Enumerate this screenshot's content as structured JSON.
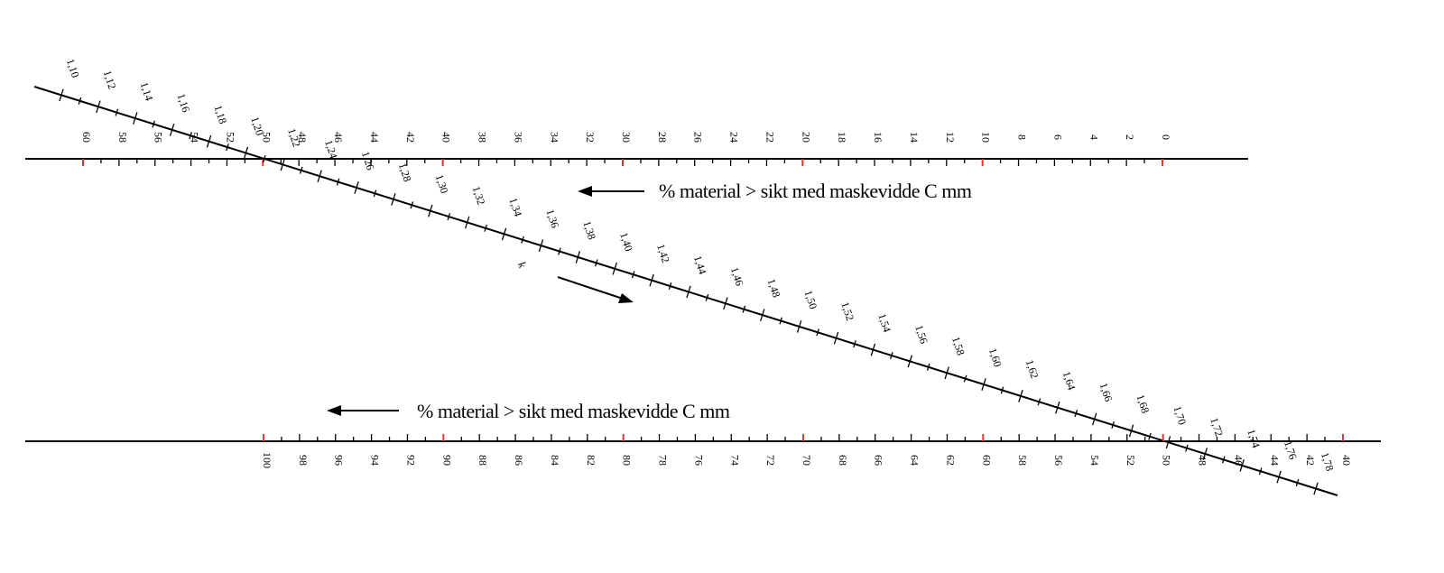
{
  "top_scale": {
    "min": 0,
    "max": 60,
    "label_step": 2,
    "minor_per_label": 2,
    "red_every": 10,
    "labels": [
      "60",
      "58",
      "56",
      "54",
      "52",
      "50",
      "48",
      "46",
      "44",
      "42",
      "40",
      "38",
      "36",
      "34",
      "32",
      "30",
      "28",
      "26",
      "24",
      "22",
      "20",
      "18",
      "16",
      "14",
      "12",
      "10",
      "8",
      "6",
      "4",
      "2",
      "0"
    ],
    "caption": "% material > sikt med maskevidde C mm",
    "caption_arrow": "left"
  },
  "bottom_scale": {
    "min": 40,
    "max": 100,
    "label_step": 2,
    "minor_per_label": 2,
    "red_every": 10,
    "labels": [
      "100",
      "98",
      "96",
      "94",
      "92",
      "90",
      "88",
      "86",
      "84",
      "82",
      "80",
      "78",
      "76",
      "74",
      "72",
      "70",
      "68",
      "66",
      "64",
      "62",
      "60",
      "58",
      "56",
      "54",
      "52",
      "50",
      "48",
      "46",
      "44",
      "42",
      "40"
    ],
    "caption": "% material > sikt med maskevidde C mm",
    "caption_arrow": "left"
  },
  "diagonal_scale": {
    "labels": [
      "1,10",
      "1,12",
      "1,14",
      "1,16",
      "1,18",
      "1,20",
      "1,22",
      "1,24",
      "1,26",
      "1,28",
      "1,30",
      "1,32",
      "1,34",
      "1,36",
      "1,38",
      "1,40",
      "1,42",
      "1,44",
      "1,46",
      "1,48",
      "1,50",
      "1,52",
      "1,54",
      "1,56",
      "1,58",
      "1,60",
      "1,62",
      "1,64",
      "1,66",
      "1,68",
      "1,70",
      "1,72",
      "1,74",
      "1,76",
      "1,78"
    ],
    "marker": "k",
    "direction_arrow": "down-right"
  },
  "colors": {
    "ink": "#000000",
    "major_tick": "#e8312a",
    "background": "#ffffff"
  }
}
